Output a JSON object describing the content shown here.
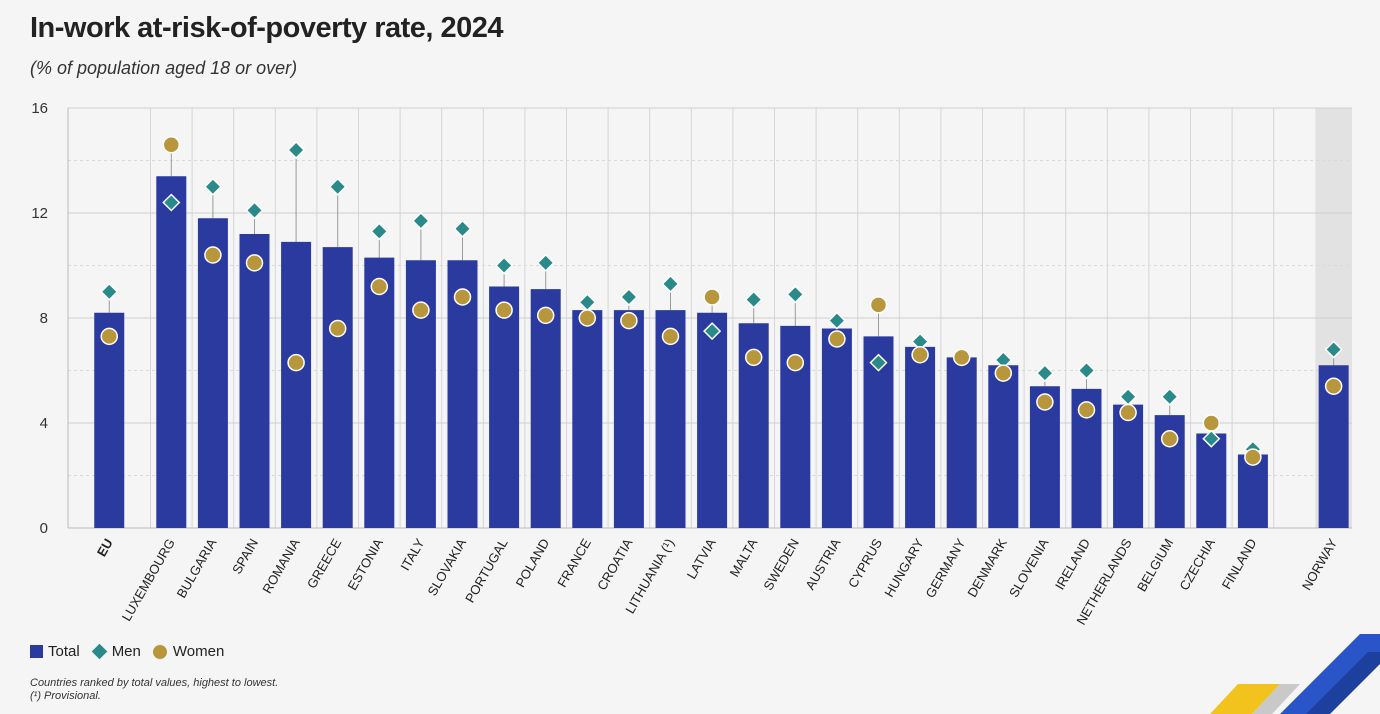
{
  "title": "In-work at-risk-of-poverty rate, 2024",
  "subtitle": "(% of population aged 18 or over)",
  "legend": {
    "total": "Total",
    "men": "Men",
    "women": "Women"
  },
  "notes": {
    "line1": "Countries ranked by total values, highest to lowest.",
    "line2": "(¹) Provisional."
  },
  "colors": {
    "total": "#2a3a9e",
    "men": "#2a8a8a",
    "women": "#b8963c",
    "norway_band": "#e2e2e2"
  },
  "chart_data": {
    "type": "bar",
    "ylim": [
      0,
      16
    ],
    "yticks": [
      "0",
      "4",
      "8",
      "12",
      "16"
    ],
    "categories": [
      "EU",
      "LUXEMBOURG",
      "BULGARIA",
      "SPAIN",
      "ROMANIA",
      "GREECE",
      "ESTONIA",
      "ITALY",
      "SLOVAKIA",
      "PORTUGAL",
      "POLAND",
      "FRANCE",
      "CROATIA",
      "LITHUANIA (¹)",
      "LATVIA",
      "MALTA",
      "SWEDEN",
      "AUSTRIA",
      "CYPRUS",
      "HUNGARY",
      "GERMANY",
      "DENMARK",
      "SLOVENIA",
      "IRELAND",
      "NETHERLANDS",
      "BELGIUM",
      "CZECHIA",
      "FINLAND",
      "NORWAY"
    ],
    "series": [
      {
        "name": "Total",
        "values": [
          8.2,
          13.4,
          11.8,
          11.2,
          10.9,
          10.7,
          10.3,
          10.2,
          10.2,
          9.2,
          9.1,
          8.3,
          8.3,
          8.3,
          8.2,
          7.8,
          7.7,
          7.6,
          7.3,
          6.9,
          6.5,
          6.2,
          5.4,
          5.3,
          4.7,
          4.3,
          3.6,
          2.8,
          6.2
        ]
      },
      {
        "name": "Men",
        "values": [
          9.0,
          12.4,
          13.0,
          12.1,
          14.4,
          13.0,
          11.3,
          11.7,
          11.4,
          10.0,
          10.1,
          8.6,
          8.8,
          9.3,
          7.5,
          8.7,
          8.9,
          7.9,
          6.3,
          7.1,
          6.5,
          6.4,
          5.9,
          6.0,
          5.0,
          5.0,
          3.4,
          3.0,
          6.8
        ]
      },
      {
        "name": "Women",
        "values": [
          7.3,
          14.6,
          10.4,
          10.1,
          6.3,
          7.6,
          9.2,
          8.3,
          8.8,
          8.3,
          8.1,
          8.0,
          7.9,
          7.3,
          8.8,
          6.5,
          6.3,
          7.2,
          8.5,
          6.6,
          6.5,
          5.9,
          4.8,
          4.5,
          4.4,
          3.4,
          4.0,
          2.7,
          5.4
        ]
      }
    ]
  }
}
